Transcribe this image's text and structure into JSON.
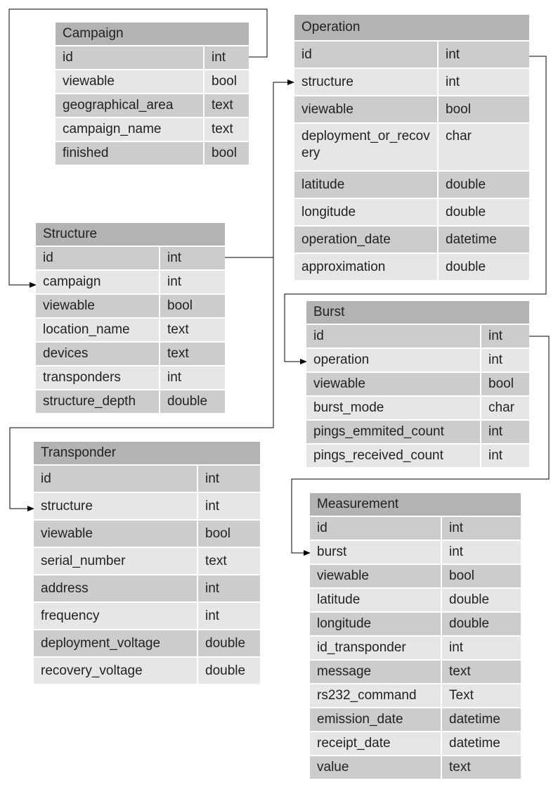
{
  "tables": {
    "campaign": {
      "title": "Campaign",
      "rows": [
        {
          "name": "id",
          "type": "int"
        },
        {
          "name": "viewable",
          "type": "bool"
        },
        {
          "name": "geographical_area",
          "type": "text"
        },
        {
          "name": "campaign_name",
          "type": "text"
        },
        {
          "name": "finished",
          "type": "bool"
        }
      ]
    },
    "operation": {
      "title": "Operation",
      "rows": [
        {
          "name": "id",
          "type": "int"
        },
        {
          "name": "structure",
          "type": "int"
        },
        {
          "name": "viewable",
          "type": "bool"
        },
        {
          "name": "deployment_or_recovery",
          "type": "char"
        },
        {
          "name": "latitude",
          "type": "double"
        },
        {
          "name": "longitude",
          "type": "double"
        },
        {
          "name": "operation_date",
          "type": "datetime"
        },
        {
          "name": "approximation",
          "type": "double"
        }
      ]
    },
    "structure": {
      "title": "Structure",
      "rows": [
        {
          "name": "id",
          "type": "int"
        },
        {
          "name": "campaign",
          "type": "int"
        },
        {
          "name": "viewable",
          "type": "bool"
        },
        {
          "name": "location_name",
          "type": "text"
        },
        {
          "name": "devices",
          "type": "text"
        },
        {
          "name": "transponders",
          "type": "int"
        },
        {
          "name": "structure_depth",
          "type": "double"
        }
      ]
    },
    "burst": {
      "title": "Burst",
      "rows": [
        {
          "name": "id",
          "type": "int"
        },
        {
          "name": "operation",
          "type": "int"
        },
        {
          "name": "viewable",
          "type": "bool"
        },
        {
          "name": "burst_mode",
          "type": "char"
        },
        {
          "name": "pings_emmited_count",
          "type": "int"
        },
        {
          "name": "pings_received_count",
          "type": "int"
        }
      ]
    },
    "transponder": {
      "title": "Transponder",
      "rows": [
        {
          "name": "id",
          "type": "int"
        },
        {
          "name": "structure",
          "type": "int"
        },
        {
          "name": "viewable",
          "type": "bool"
        },
        {
          "name": "serial_number",
          "type": "text"
        },
        {
          "name": "address",
          "type": "int"
        },
        {
          "name": "frequency",
          "type": "int"
        },
        {
          "name": "deployment_voltage",
          "type": "double"
        },
        {
          "name": "recovery_voltage",
          "type": "double"
        }
      ]
    },
    "measurement": {
      "title": "Measurement",
      "rows": [
        {
          "name": "id",
          "type": "int"
        },
        {
          "name": "burst",
          "type": "int"
        },
        {
          "name": "viewable",
          "type": "bool"
        },
        {
          "name": "latitude",
          "type": "double"
        },
        {
          "name": "longitude",
          "type": "double"
        },
        {
          "name": "id_transponder",
          "type": "int"
        },
        {
          "name": "message",
          "type": "text"
        },
        {
          "name": "rs232_command",
          "type": "Text"
        },
        {
          "name": "emission_date",
          "type": "datetime"
        },
        {
          "name": "receipt_date",
          "type": "datetime"
        },
        {
          "name": "value",
          "type": "text"
        }
      ]
    }
  },
  "relations": [
    {
      "from": "campaign.id",
      "to": "structure.campaign"
    },
    {
      "from": "structure.id",
      "to": "operation.structure"
    },
    {
      "from": "structure.id",
      "to": "transponder.structure"
    },
    {
      "from": "operation.id",
      "to": "burst.operation"
    },
    {
      "from": "burst.id",
      "to": "measurement.burst"
    }
  ],
  "colors": {
    "header": "#b3b3b3",
    "row_dark": "#cccccc",
    "row_light": "#e6e6e6",
    "line": "#000000"
  }
}
